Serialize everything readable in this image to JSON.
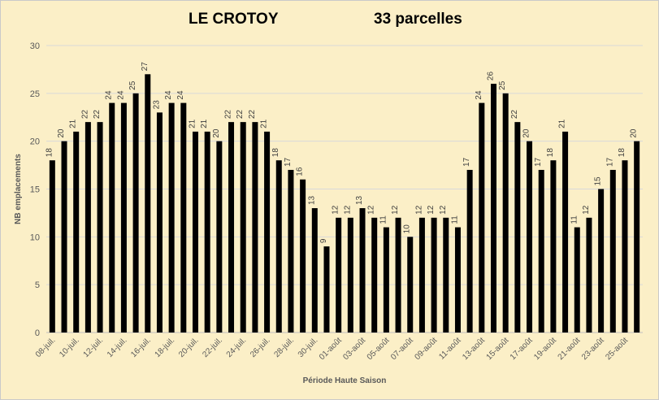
{
  "header": {
    "title": "LE CROTOY",
    "subtitle": "33 parcelles"
  },
  "chart_data": {
    "type": "bar",
    "xlabel": "Période Haute Saison",
    "ylabel": "NB emplacements",
    "ylim": [
      0,
      30
    ],
    "yticks": [
      0,
      5,
      10,
      15,
      20,
      25,
      30
    ],
    "grid": true,
    "bar_color": "#000000",
    "categories": [
      "08-juil.",
      "09-juil.",
      "10-juil.",
      "11-juil.",
      "12-juil.",
      "13-juil.",
      "14-juil.",
      "15-juil.",
      "16-juil.",
      "17-juil.",
      "18-juil.",
      "19-juil.",
      "20-juil.",
      "21-juil.",
      "22-juil.",
      "23-juil.",
      "24-juil.",
      "25-juil.",
      "26-juil.",
      "27-juil.",
      "28-juil.",
      "29-juil.",
      "30-juil.",
      "31-juil.",
      "01-août",
      "02-août",
      "03-août",
      "04-août",
      "05-août",
      "06-août",
      "07-août",
      "08-août",
      "09-août",
      "10-août",
      "11-août",
      "12-août",
      "13-août",
      "14-août",
      "15-août",
      "16-août",
      "17-août",
      "18-août",
      "19-août",
      "20-août",
      "21-août",
      "22-août",
      "23-août",
      "24-août",
      "25-août",
      "26-août"
    ],
    "values": [
      18,
      20,
      21,
      22,
      22,
      24,
      24,
      25,
      27,
      23,
      24,
      24,
      21,
      21,
      20,
      22,
      22,
      22,
      21,
      18,
      17,
      16,
      13,
      9,
      12,
      12,
      13,
      12,
      11,
      12,
      10,
      12,
      12,
      12,
      11,
      17,
      24,
      26,
      25,
      22,
      20,
      17,
      18,
      21,
      11,
      12,
      15,
      17,
      18,
      20
    ],
    "x_tick_labels": [
      "08-juil.",
      "10-juil.",
      "12-juil.",
      "14-juil.",
      "16-juil.",
      "18-juil.",
      "20-juil.",
      "22-juil.",
      "24-juil.",
      "26-juil.",
      "28-juil.",
      "30-juil.",
      "01-août",
      "03-août",
      "05-août",
      "07-août",
      "09-août",
      "11-août",
      "13-août",
      "15-août",
      "17-août",
      "19-août",
      "21-août",
      "23-août",
      "25-août"
    ]
  }
}
